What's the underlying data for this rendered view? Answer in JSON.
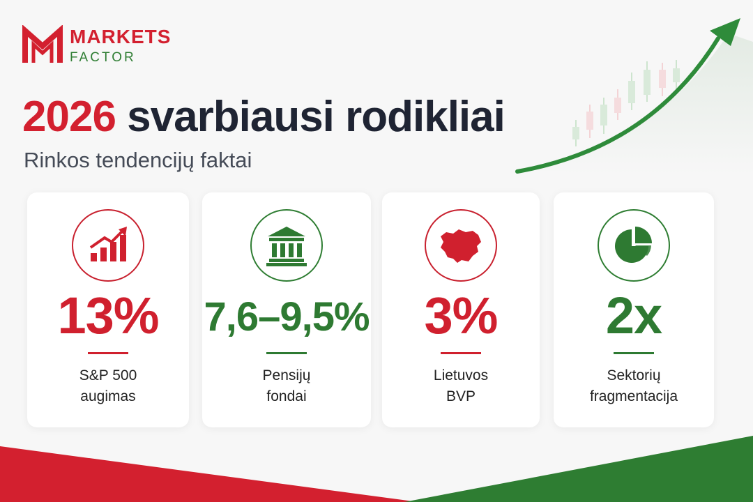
{
  "logo": {
    "line1": "MARKETS",
    "line2": "FACTOR",
    "icon": "markets-factor-logo-icon"
  },
  "headline": {
    "year": "2026",
    "rest": "svarbiausi rodikliai"
  },
  "subtitle": "Rinkos tendencijų faktai",
  "cards": [
    {
      "icon": "growth-bars-icon",
      "value": "13%",
      "label_line1": "S&P 500",
      "label_line2": "augimas",
      "color": "#d0202e"
    },
    {
      "icon": "bank-building-icon",
      "value": "7,6–9,5%",
      "label_line1": "Pensijų",
      "label_line2": "fondai",
      "color": "#2e7a32"
    },
    {
      "icon": "lithuania-map-icon",
      "value": "3%",
      "label_line1": "Lietuvos",
      "label_line2": "BVP",
      "color": "#d0202e"
    },
    {
      "icon": "pie-chart-icon",
      "value": "2x",
      "label_line1": "Sektorių",
      "label_line2": "fragmentacija",
      "color": "#2e7a32"
    }
  ],
  "colors": {
    "brand_red": "#d3202f",
    "brand_green": "#2e7d32",
    "background": "#f7f7f7"
  }
}
